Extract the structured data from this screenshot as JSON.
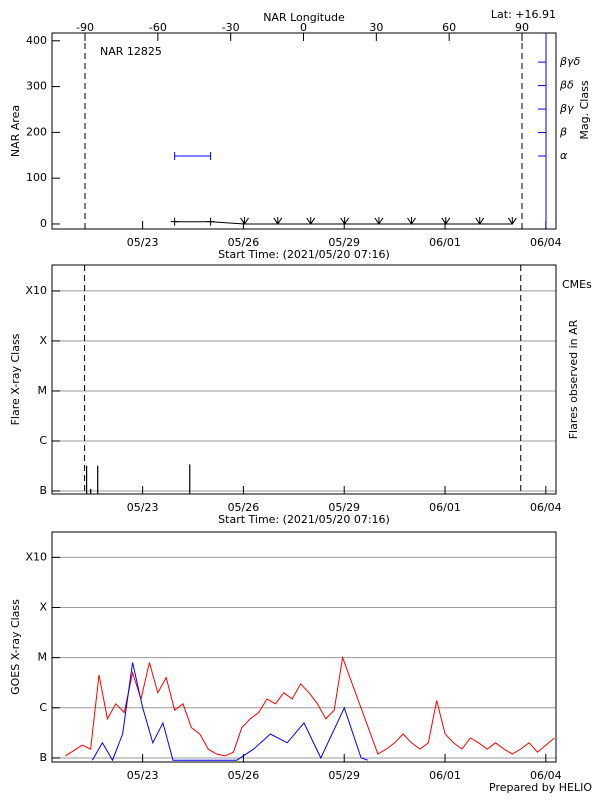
{
  "chart_data": [
    {
      "type": "line",
      "title": "NAR 12825",
      "annotation": "Lat: +16.91",
      "xlabel": "Start Time: (2021/05/20 07:16)",
      "x2label": "NAR Longitude",
      "ylabel": "NAR Area",
      "y2label": "Mag. Class",
      "xlim": [
        0,
        15
      ],
      "xticks": [
        {
          "value": 2.697,
          "label": "05/23"
        },
        {
          "value": 5.697,
          "label": "05/26"
        },
        {
          "value": 8.697,
          "label": "05/29"
        },
        {
          "value": 11.697,
          "label": "06/01"
        },
        {
          "value": 14.697,
          "label": "06/04"
        }
      ],
      "x2lim": [
        -103.6,
        104
      ],
      "x2ticks": [
        -90,
        -60,
        -30,
        0,
        30,
        60,
        90
      ],
      "ylim": [
        -11,
        417
      ],
      "yticks": [
        0,
        100,
        200,
        300,
        400
      ],
      "y2lim": [
        -0.11,
        8.24
      ],
      "y2ticks": [
        {
          "value": 3,
          "label": "α"
        },
        {
          "value": 4,
          "label": "β"
        },
        {
          "value": 5,
          "label": "βγ"
        },
        {
          "value": 6,
          "label": "βδ"
        },
        {
          "value": 7,
          "label": "βγδ"
        }
      ],
      "y2color": "#0000ff",
      "vlines": [
        -90,
        90
      ],
      "vlines_axis": "x2",
      "grid": false,
      "series": [
        {
          "color": "#000000",
          "marker": "plus",
          "x": [
            3.65,
            4.72,
            5.73,
            6.72,
            7.7,
            8.71,
            9.73,
            10.7,
            11.72,
            12.73,
            13.7
          ],
          "values": [
            5,
            5,
            0,
            0,
            0,
            0,
            0,
            0,
            0,
            0,
            0
          ]
        },
        {
          "color": "#0000ff",
          "marker": "bar",
          "axis": "y2",
          "x": [
            3.65,
            4.72
          ],
          "values": [
            3,
            3
          ]
        }
      ]
    },
    {
      "type": "bar",
      "xlabel": "Start Time: (2021/05/20 07:16)",
      "ylabel": "Flare X-ray Class",
      "y2label": "Flares observed in AR",
      "annotation": "CMEs",
      "annotation_color": "#ff0000",
      "xlim": [
        0,
        15
      ],
      "xticks": [
        {
          "value": 2.697,
          "label": "05/23"
        },
        {
          "value": 5.697,
          "label": "05/26"
        },
        {
          "value": 8.697,
          "label": "05/29"
        },
        {
          "value": 11.697,
          "label": "06/01"
        },
        {
          "value": 14.697,
          "label": "06/04"
        }
      ],
      "log_scale": true,
      "ylim": [
        8.7e-08,
        0.0033
      ],
      "yticks": [
        {
          "value": 1e-07,
          "label": "B"
        },
        {
          "value": 1e-06,
          "label": "C"
        },
        {
          "value": 1e-05,
          "label": "M"
        },
        {
          "value": 0.0001,
          "label": "X"
        },
        {
          "value": 0.001,
          "label": "X10"
        }
      ],
      "vlines": [
        0.97,
        13.95
      ],
      "vlines_axis": "x",
      "grid": true,
      "series": [
        {
          "color": "#000000",
          "x": [
            1.03,
            1.15,
            1.36,
            4.1
          ],
          "values": [
            3.2e-07,
            1.1e-07,
            3.2e-07,
            3.4e-07
          ]
        }
      ]
    },
    {
      "type": "line",
      "ylabel": "GOES X-ray Class",
      "xlim": [
        0,
        15
      ],
      "xticks": [
        {
          "value": 2.697,
          "label": "05/23"
        },
        {
          "value": 5.697,
          "label": "05/26"
        },
        {
          "value": 8.697,
          "label": "05/29"
        },
        {
          "value": 11.697,
          "label": "06/01"
        },
        {
          "value": 14.697,
          "label": "06/04"
        }
      ],
      "log_scale": true,
      "ylim": [
        8.3e-08,
        0.0032
      ],
      "yticks": [
        {
          "value": 1e-07,
          "label": "B"
        },
        {
          "value": 1e-06,
          "label": "C"
        },
        {
          "value": 1e-05,
          "label": "M"
        },
        {
          "value": 0.0001,
          "label": "X"
        },
        {
          "value": 0.001,
          "label": "X10"
        }
      ],
      "grid": true,
      "series": [
        {
          "color": "#ff0000",
          "x": [
            0.4,
            0.65,
            0.9,
            1.15,
            1.4,
            1.65,
            1.9,
            2.15,
            2.4,
            2.65,
            2.9,
            3.15,
            3.4,
            3.65,
            3.9,
            4.15,
            4.4,
            4.65,
            4.9,
            5.15,
            5.4,
            5.65,
            5.9,
            6.15,
            6.4,
            6.65,
            6.9,
            7.15,
            7.4,
            7.65,
            7.9,
            8.15,
            8.4,
            8.65,
            9.7,
            9.95,
            10.2,
            10.45,
            10.7,
            10.95,
            11.2,
            11.45,
            11.7,
            11.95,
            12.2,
            12.45,
            12.7,
            12.95,
            13.2,
            13.45,
            13.7,
            13.95,
            14.2,
            14.45,
            14.7,
            14.95
          ],
          "values": [
            1.1e-07,
            1.4e-07,
            1.8e-07,
            1.5e-07,
            4.5e-06,
            6e-07,
            1.2e-06,
            8e-07,
            5e-06,
            1.5e-06,
            8e-06,
            2e-06,
            4e-06,
            9e-07,
            1.2e-06,
            4e-07,
            3e-07,
            1.5e-07,
            1.2e-07,
            1.1e-07,
            1.3e-07,
            4e-07,
            6e-07,
            8e-07,
            1.5e-06,
            1.2e-06,
            2e-06,
            1.5e-06,
            3e-06,
            2e-06,
            1.2e-06,
            6e-07,
            9e-07,
            1e-05,
            1.2e-07,
            1.5e-07,
            2e-07,
            3e-07,
            2e-07,
            1.5e-07,
            2e-07,
            1.4e-06,
            3e-07,
            2e-07,
            1.5e-07,
            2.5e-07,
            2e-07,
            1.5e-07,
            2e-07,
            1.5e-07,
            1.2e-07,
            1.5e-07,
            2e-07,
            1.3e-07,
            1.8e-07,
            2.5e-07
          ]
        },
        {
          "color": "#0000ff",
          "x": [
            1.2,
            1.5,
            1.8,
            2.1,
            2.4,
            2.7,
            3.0,
            3.3,
            3.6,
            5.5,
            6.0,
            6.5,
            7.0,
            7.5,
            8.0,
            8.7,
            9.2,
            9.4
          ],
          "values": [
            9e-08,
            2e-07,
            9e-08,
            3e-07,
            8e-06,
            1e-06,
            2e-07,
            5e-07,
            9e-08,
            9e-08,
            1.5e-07,
            3e-07,
            2e-07,
            5e-07,
            1e-07,
            1e-06,
            1e-07,
            9e-08
          ]
        }
      ]
    }
  ],
  "footer": "Prepared by HELIO"
}
